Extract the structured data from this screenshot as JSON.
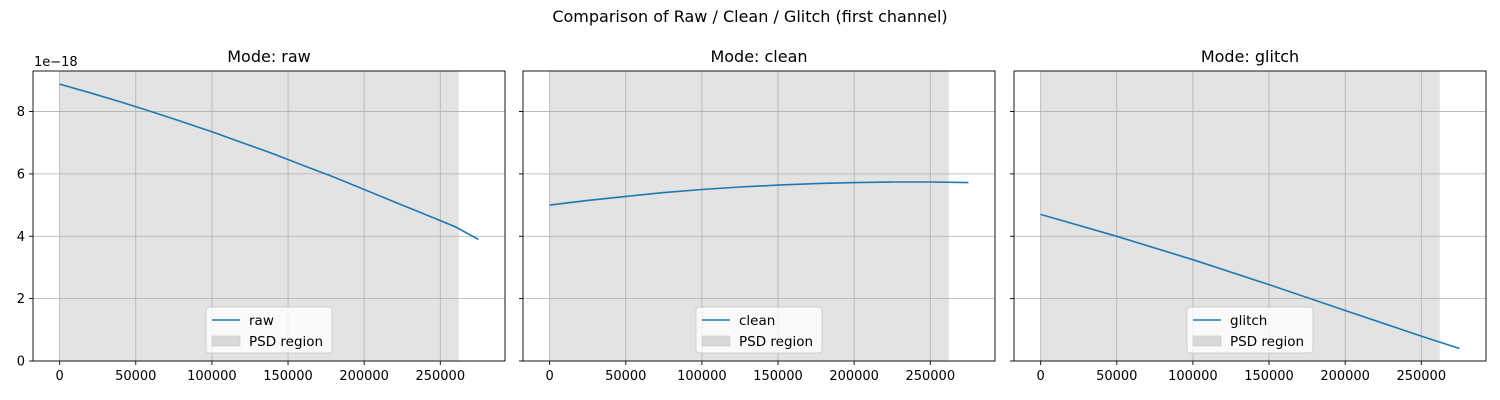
{
  "suptitle": "Comparison of Raw / Clean / Glitch (first channel)",
  "y_offset_label": "1e−18",
  "colors": {
    "line": "#1f77b4",
    "region": "#e3e3e3",
    "region_legend": "#d9d9d9",
    "grid": "#b0b0b0"
  },
  "chart_data": [
    {
      "type": "line",
      "title": "Mode: raw",
      "xlim": [
        -17500,
        292500
      ],
      "ylim": [
        0,
        9.3e-18
      ],
      "grid": true,
      "legend_placement": "lower center",
      "xticks": [
        0,
        50000,
        100000,
        150000,
        200000,
        250000
      ],
      "xtick_labels": [
        "0",
        "50000",
        "100000",
        "150000",
        "200000",
        "250000"
      ],
      "yticks": [
        0,
        2e-18,
        4e-18,
        6e-18,
        8e-18
      ],
      "ytick_labels": [
        "0",
        "2",
        "4",
        "6",
        "8"
      ],
      "region": {
        "name": "PSD region",
        "x": [
          0,
          262144
        ]
      },
      "series": [
        {
          "name": "raw",
          "x": [
            0,
            20000,
            40000,
            60000,
            80000,
            100000,
            120000,
            140000,
            160000,
            180000,
            200000,
            220000,
            240000,
            260000,
            275000
          ],
          "y": [
            8.88e-18,
            8.6e-18,
            8.31e-18,
            8e-18,
            7.68e-18,
            7.35e-18,
            7e-18,
            6.65e-18,
            6.27e-18,
            5.9e-18,
            5.5e-18,
            5.1e-18,
            4.7e-18,
            4.3e-18,
            3.9e-18
          ]
        }
      ]
    },
    {
      "type": "line",
      "title": "Mode: clean",
      "xlim": [
        -17500,
        292500
      ],
      "ylim": [
        0,
        9.3e-18
      ],
      "grid": true,
      "legend_placement": "lower center",
      "xticks": [
        0,
        50000,
        100000,
        150000,
        200000,
        250000
      ],
      "xtick_labels": [
        "0",
        "50000",
        "100000",
        "150000",
        "200000",
        "250000"
      ],
      "yticks": [
        0,
        2e-18,
        4e-18,
        6e-18,
        8e-18
      ],
      "ytick_labels": [
        "",
        "",
        "",
        "",
        ""
      ],
      "region": {
        "name": "PSD region",
        "x": [
          0,
          262144
        ]
      },
      "series": [
        {
          "name": "clean",
          "x": [
            0,
            25000,
            50000,
            75000,
            100000,
            125000,
            150000,
            175000,
            200000,
            225000,
            250000,
            275000
          ],
          "y": [
            5e-18,
            5.15e-18,
            5.28e-18,
            5.4e-18,
            5.5e-18,
            5.58e-18,
            5.64e-18,
            5.69e-18,
            5.72e-18,
            5.74e-18,
            5.74e-18,
            5.72e-18
          ]
        }
      ]
    },
    {
      "type": "line",
      "title": "Mode: glitch",
      "xlim": [
        -17500,
        292500
      ],
      "ylim": [
        0,
        9.3e-18
      ],
      "grid": true,
      "legend_placement": "lower center",
      "xticks": [
        0,
        50000,
        100000,
        150000,
        200000,
        250000
      ],
      "xtick_labels": [
        "0",
        "50000",
        "100000",
        "150000",
        "200000",
        "250000"
      ],
      "yticks": [
        0,
        2e-18,
        4e-18,
        6e-18,
        8e-18
      ],
      "ytick_labels": [
        "",
        "",
        "",
        "",
        ""
      ],
      "region": {
        "name": "PSD region",
        "x": [
          0,
          262144
        ]
      },
      "series": [
        {
          "name": "glitch",
          "x": [
            0,
            50000,
            100000,
            150000,
            200000,
            250000,
            275000
          ],
          "y": [
            4.7e-18,
            4e-18,
            3.25e-18,
            2.45e-18,
            1.62e-18,
            8e-19,
            4e-19
          ]
        }
      ]
    }
  ]
}
